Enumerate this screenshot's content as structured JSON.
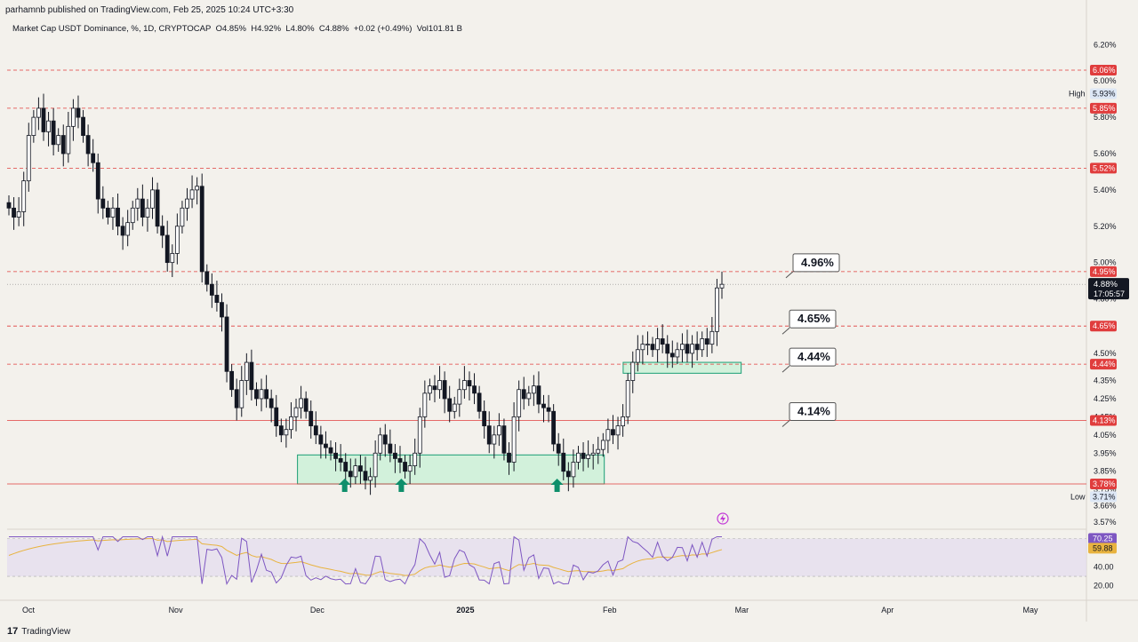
{
  "header": {
    "published": "parhamnb published on TradingView.com, Feb 25, 2025 10:24 UTC+3:30"
  },
  "legend": {
    "symbol": "Market Cap USDT Dominance, %, 1D, CRYPTOCAP",
    "o": "O4.85%",
    "h": "H4.92%",
    "l": "L4.80%",
    "c": "C4.88%",
    "chg": "+0.02 (+0.49%)",
    "vol": "Vol101.81 B"
  },
  "footer": {
    "brand": "TradingView"
  },
  "colors": {
    "background": "#f3f1ec",
    "candle": "#131722",
    "level_line": "#e03d3d",
    "zone_fill": "#c7f0d6",
    "zone_border": "#1a9e74",
    "arrow": "#0e8f6b",
    "rsi": "#7e57c2",
    "rsi_ma": "#e8b33f",
    "rsi_band": "#e3dbef"
  },
  "chart_data": {
    "type": "candlestick",
    "y_unit": "%",
    "ylim": [
      3.56,
      6.28
    ],
    "y_ticks": [
      "6.20%",
      "6.00%",
      "5.80%",
      "5.60%",
      "5.40%",
      "5.20%",
      "5.00%",
      "4.80%",
      "4.65%",
      "4.50%",
      "4.35%",
      "4.25%",
      "4.15%",
      "4.05%",
      "3.95%",
      "3.85%",
      "3.75%",
      "3.66%",
      "3.57%"
    ],
    "x_ticks": [
      "Oct",
      "Nov",
      "Dec",
      "2025",
      "Feb",
      "Mar",
      "Apr",
      "May"
    ],
    "levels": [
      {
        "value": 6.06,
        "label": "6.06%",
        "style": "dashed"
      },
      {
        "value": 5.85,
        "label": "5.85%",
        "style": "dashed"
      },
      {
        "value": 5.52,
        "label": "5.52%",
        "style": "dashed"
      },
      {
        "value": 4.95,
        "label": "4.95%",
        "style": "dashed"
      },
      {
        "value": 4.65,
        "label": "4.65%",
        "style": "dashed"
      },
      {
        "value": 4.44,
        "label": "4.44%",
        "style": "dashed"
      },
      {
        "value": 4.13,
        "label": "4.13%",
        "style": "solid"
      },
      {
        "value": 3.78,
        "label": "3.78%",
        "style": "solid"
      }
    ],
    "high": {
      "label": "High",
      "value": "5.93%"
    },
    "low": {
      "label": "Low",
      "value": "3.71%"
    },
    "current": {
      "price": "4.88%",
      "countdown": "17:05:57",
      "value": 4.88
    },
    "callouts": [
      "4.96%",
      "4.65%",
      "4.44%",
      "4.14%"
    ],
    "zones": [
      {
        "from": "2024-11-27",
        "to": "2025-01-31",
        "low": 3.78,
        "high": 3.94
      },
      {
        "from": "2025-02-04",
        "to": "2025-03-01",
        "low": 4.39,
        "high": 4.45
      }
    ],
    "arrows": [
      "2024-12-07",
      "2024-12-19",
      "2025-01-21"
    ],
    "candles_close": [
      5.3,
      5.25,
      5.28,
      5.45,
      5.7,
      5.8,
      5.85,
      5.72,
      5.78,
      5.65,
      5.7,
      5.6,
      5.75,
      5.85,
      5.8,
      5.7,
      5.6,
      5.55,
      5.35,
      5.3,
      5.25,
      5.3,
      5.2,
      5.15,
      5.22,
      5.3,
      5.35,
      5.25,
      5.3,
      5.4,
      5.2,
      5.15,
      5.0,
      5.05,
      5.2,
      5.3,
      5.35,
      5.4,
      5.42,
      4.95,
      4.88,
      4.82,
      4.78,
      4.7,
      4.4,
      4.3,
      4.2,
      4.35,
      4.45,
      4.3,
      4.25,
      4.3,
      4.25,
      4.2,
      4.1,
      4.05,
      4.08,
      4.15,
      4.2,
      4.25,
      4.18,
      4.1,
      4.05,
      4.0,
      3.98,
      3.95,
      3.92,
      3.9,
      3.85,
      3.82,
      3.88,
      3.85,
      3.8,
      3.82,
      3.95,
      4.05,
      4.0,
      3.95,
      3.92,
      3.9,
      3.85,
      3.88,
      3.95,
      4.15,
      4.28,
      4.32,
      4.3,
      4.35,
      4.25,
      4.18,
      4.22,
      4.3,
      4.35,
      4.32,
      4.28,
      4.18,
      4.1,
      4.0,
      4.05,
      4.1,
      3.95,
      3.9,
      4.15,
      4.3,
      4.25,
      4.28,
      4.32,
      4.22,
      4.2,
      4.18,
      4.0,
      3.95,
      3.85,
      3.82,
      3.9,
      3.95,
      3.92,
      3.94,
      3.95,
      3.97,
      4.02,
      4.08,
      4.05,
      4.1,
      4.15,
      4.35,
      4.45,
      4.52,
      4.55,
      4.55,
      4.52,
      4.58,
      4.55,
      4.5,
      4.48,
      4.52,
      4.55,
      4.5,
      4.55,
      4.52,
      4.58,
      4.55,
      4.62,
      4.86,
      4.88
    ],
    "rsi": {
      "ylim": [
        15,
        80
      ],
      "upper": 70,
      "lower": 30,
      "value_label": "70.25",
      "ma_label": "59.88",
      "ticks": [
        "70.25",
        "59.88",
        "40.00",
        "20.00"
      ]
    }
  }
}
